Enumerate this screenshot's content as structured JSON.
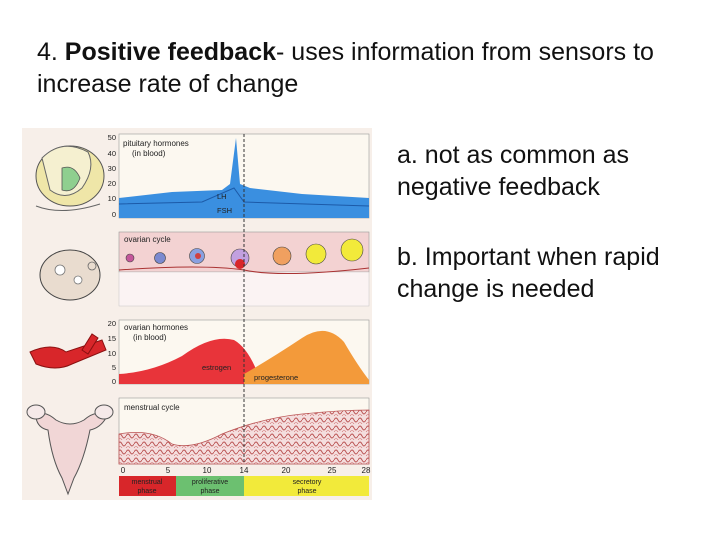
{
  "slide": {
    "title_bold": "Positive feedback",
    "title_prefix": "4. ",
    "title_rest": "- uses information from sensors to increase rate of change",
    "bullets": [
      "a. not as common as negative feedback",
      "b. Important when rapid change is needed"
    ]
  },
  "figure": {
    "panels": {
      "pituitary": {
        "label_line1": "pituitary hormones",
        "label_line2": "(in blood)",
        "ticks": [
          "50",
          "40",
          "30",
          "20",
          "10",
          "0"
        ],
        "series": [
          "LH",
          "FSH"
        ]
      },
      "ovarian_cycle": {
        "label": "ovarian cycle"
      },
      "ovarian_hormones": {
        "label_line1": "ovarian hormones",
        "label_line2": "(in blood)",
        "ticks": [
          "20",
          "15",
          "10",
          "5",
          "0"
        ],
        "series": [
          "estrogen",
          "progesterone"
        ]
      },
      "menstrual": {
        "label": "menstrual cycle"
      }
    },
    "day_ticks": [
      "0",
      "5",
      "10",
      "14",
      "20",
      "25",
      "28"
    ],
    "phases": [
      {
        "line1": "menstrual",
        "line2": "phase"
      },
      {
        "line1": "proliferative",
        "line2": "phase"
      },
      {
        "line1": "secretory",
        "line2": "phase"
      }
    ],
    "colors": {
      "lh_blue": "#3a8fe0",
      "estrogen_red": "#e8343a",
      "progesterone_orange": "#f39a3a",
      "menstrual_red": "#d8262a",
      "proliferative_green": "#6cc070",
      "secretory_yellow": "#f2ea3a",
      "panel_pink": "#f3d2d2"
    }
  }
}
